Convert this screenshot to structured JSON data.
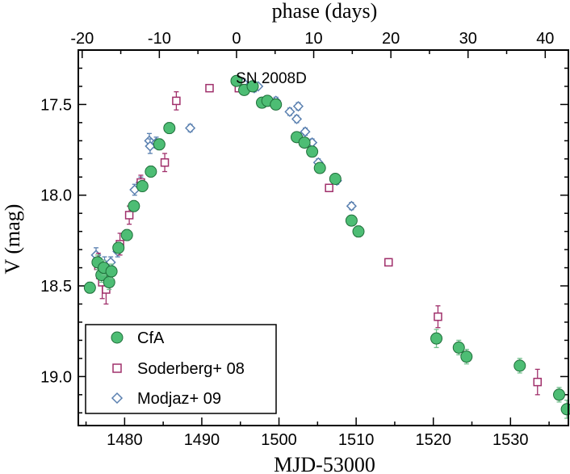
{
  "chart_data": {
    "type": "scatter",
    "title": "",
    "annotation": "SN 2008D",
    "xlabel": "MJD-53000",
    "ylabel": "V (mag)",
    "x2label": "phase (days)",
    "xlim": [
      1474,
      1537.5
    ],
    "ylim": [
      19.27,
      17.2
    ],
    "x_ticks": [
      1480,
      1490,
      1500,
      1510,
      1520,
      1530
    ],
    "y_ticks": [
      17.5,
      18.0,
      18.5,
      19.0
    ],
    "y_tick_labels": [
      "17.5",
      "18.0",
      "18.5",
      "19.0"
    ],
    "phase_zero_mjd": 1494.5,
    "phase_ticks": [
      -20,
      -10,
      0,
      10,
      20,
      30,
      40
    ],
    "legend_position": "bottom-left",
    "colors": {
      "cfa_fill": "#4dbd74",
      "cfa_edge": "#1f6e3a",
      "cfa_err": "#6fbf8a",
      "soderberg": "#a0306b",
      "modjaz": "#5a80b0"
    },
    "series": [
      {
        "name": "CfA",
        "marker": "circle",
        "points": [
          {
            "x": 1475.5,
            "y": 18.51,
            "err": 0.03
          },
          {
            "x": 1476.5,
            "y": 18.37,
            "err": 0.04
          },
          {
            "x": 1477.0,
            "y": 18.44,
            "err": 0.04
          },
          {
            "x": 1477.3,
            "y": 18.4,
            "err": 0.04
          },
          {
            "x": 1478.0,
            "y": 18.48,
            "err": 0.04
          },
          {
            "x": 1478.3,
            "y": 18.42,
            "err": 0.04
          },
          {
            "x": 1479.2,
            "y": 18.29,
            "err": 0.03
          },
          {
            "x": 1480.3,
            "y": 18.22,
            "err": 0.03
          },
          {
            "x": 1481.2,
            "y": 18.06,
            "err": 0.03
          },
          {
            "x": 1482.3,
            "y": 17.95,
            "err": 0.03
          },
          {
            "x": 1483.4,
            "y": 17.87,
            "err": 0.03
          },
          {
            "x": 1484.5,
            "y": 17.72,
            "err": 0.03
          },
          {
            "x": 1485.8,
            "y": 17.63,
            "err": 0.03
          },
          {
            "x": 1494.5,
            "y": 17.37,
            "err": 0.02
          },
          {
            "x": 1495.5,
            "y": 17.42,
            "err": 0.02
          },
          {
            "x": 1496.6,
            "y": 17.4,
            "err": 0.02
          },
          {
            "x": 1497.8,
            "y": 17.49,
            "err": 0.02
          },
          {
            "x": 1498.5,
            "y": 17.48,
            "err": 0.02
          },
          {
            "x": 1499.6,
            "y": 17.5,
            "err": 0.02
          },
          {
            "x": 1502.3,
            "y": 17.68,
            "err": 0.02
          },
          {
            "x": 1503.3,
            "y": 17.71,
            "err": 0.02
          },
          {
            "x": 1504.3,
            "y": 17.76,
            "err": 0.02
          },
          {
            "x": 1505.3,
            "y": 17.85,
            "err": 0.02
          },
          {
            "x": 1507.3,
            "y": 17.91,
            "err": 0.02
          },
          {
            "x": 1509.4,
            "y": 18.14,
            "err": 0.02
          },
          {
            "x": 1510.3,
            "y": 18.2,
            "err": 0.03
          },
          {
            "x": 1520.4,
            "y": 18.79,
            "err": 0.05
          },
          {
            "x": 1523.3,
            "y": 18.84,
            "err": 0.04
          },
          {
            "x": 1524.3,
            "y": 18.89,
            "err": 0.04
          },
          {
            "x": 1531.2,
            "y": 18.94,
            "err": 0.04
          },
          {
            "x": 1536.3,
            "y": 19.1,
            "err": 0.04
          },
          {
            "x": 1537.3,
            "y": 19.18,
            "err": 0.05
          }
        ]
      },
      {
        "name": "Soderberg+ 08",
        "marker": "square",
        "points": [
          {
            "x": 1476.6,
            "y": 18.39,
            "err": 0.07
          },
          {
            "x": 1477.1,
            "y": 18.48,
            "err": 0.09
          },
          {
            "x": 1477.6,
            "y": 18.52,
            "err": 0.08
          },
          {
            "x": 1479.4,
            "y": 18.27,
            "err": 0.06
          },
          {
            "x": 1480.6,
            "y": 18.11,
            "err": 0.05
          },
          {
            "x": 1482.1,
            "y": 17.93,
            "err": 0.04
          },
          {
            "x": 1485.2,
            "y": 17.82,
            "err": 0.05
          },
          {
            "x": 1486.7,
            "y": 17.48,
            "err": 0.05
          },
          {
            "x": 1491.0,
            "y": 17.41,
            "err": 0.01
          },
          {
            "x": 1494.8,
            "y": 17.41,
            "err": 0.01
          },
          {
            "x": 1506.5,
            "y": 17.96,
            "err": 0.02
          },
          {
            "x": 1514.2,
            "y": 18.37,
            "err": 0.02
          },
          {
            "x": 1520.6,
            "y": 18.67,
            "err": 0.06
          },
          {
            "x": 1533.5,
            "y": 19.03,
            "err": 0.07
          }
        ]
      },
      {
        "name": "Modjaz+ 09",
        "marker": "diamond",
        "points": [
          {
            "x": 1476.3,
            "y": 18.33,
            "err": 0.04
          },
          {
            "x": 1477.4,
            "y": 18.38,
            "err": 0.04
          },
          {
            "x": 1478.2,
            "y": 18.37,
            "err": 0.03
          },
          {
            "x": 1479.1,
            "y": 18.31,
            "err": 0.03
          },
          {
            "x": 1481.3,
            "y": 17.97,
            "err": 0.03
          },
          {
            "x": 1482.1,
            "y": 17.93,
            "err": 0.03
          },
          {
            "x": 1483.2,
            "y": 17.7,
            "err": 0.04
          },
          {
            "x": 1483.3,
            "y": 17.73,
            "err": 0.04
          },
          {
            "x": 1484.1,
            "y": 17.71,
            "err": 0.03
          },
          {
            "x": 1488.5,
            "y": 17.63,
            "err": 0.02
          },
          {
            "x": 1495.4,
            "y": 17.38,
            "err": 0.02
          },
          {
            "x": 1496.8,
            "y": 17.41,
            "err": 0.02
          },
          {
            "x": 1497.3,
            "y": 17.4,
            "err": 0.01
          },
          {
            "x": 1499.6,
            "y": 17.48,
            "err": 0.02
          },
          {
            "x": 1501.4,
            "y": 17.54,
            "err": 0.02
          },
          {
            "x": 1502.3,
            "y": 17.58,
            "err": 0.02
          },
          {
            "x": 1502.5,
            "y": 17.51,
            "err": 0.02
          },
          {
            "x": 1503.4,
            "y": 17.65,
            "err": 0.02
          },
          {
            "x": 1504.3,
            "y": 17.71,
            "err": 0.02
          },
          {
            "x": 1505.1,
            "y": 17.82,
            "err": 0.02
          },
          {
            "x": 1507.5,
            "y": 17.92,
            "err": 0.02
          },
          {
            "x": 1509.4,
            "y": 18.06,
            "err": 0.02
          }
        ]
      }
    ]
  }
}
